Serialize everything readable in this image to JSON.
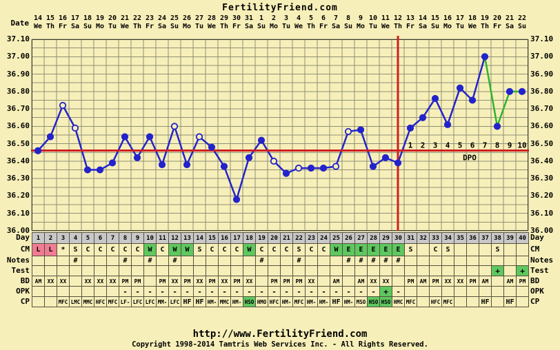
{
  "title": "FertilityFriend.com",
  "header": {
    "date_label": "Date",
    "dates": [
      "14",
      "15",
      "16",
      "17",
      "18",
      "19",
      "20",
      "21",
      "22",
      "23",
      "24",
      "25",
      "26",
      "27",
      "28",
      "29",
      "30",
      "31",
      "1",
      "2",
      "3",
      "4",
      "5",
      "6",
      "7",
      "8",
      "9",
      "10",
      "11",
      "12",
      "13",
      "14",
      "15",
      "16",
      "17",
      "18",
      "19",
      "20",
      "21",
      "22"
    ],
    "weekdays": [
      "We",
      "Th",
      "Fr",
      "Sa",
      "Su",
      "Mo",
      "Tu",
      "We",
      "Th",
      "Fr",
      "Sa",
      "Su",
      "Mo",
      "Tu",
      "We",
      "Th",
      "Fr",
      "Sa",
      "Su",
      "Mo",
      "Tu",
      "We",
      "Th",
      "Fr",
      "Sa",
      "Su",
      "Mo",
      "Tu",
      "We",
      "Th",
      "Fr",
      "Sa",
      "Su",
      "Mo",
      "Tu",
      "We",
      "Th",
      "Fr",
      "Sa",
      "Su"
    ],
    "cycle_days": [
      "1",
      "2",
      "3",
      "4",
      "5",
      "6",
      "7",
      "8",
      "9",
      "10",
      "11",
      "12",
      "13",
      "14",
      "15",
      "16",
      "17",
      "18",
      "19",
      "20",
      "21",
      "22",
      "23",
      "24",
      "25",
      "26",
      "27",
      "28",
      "29",
      "30",
      "31",
      "32",
      "33",
      "34",
      "35",
      "36",
      "37",
      "38",
      "39",
      "40"
    ]
  },
  "chart_data": {
    "type": "line",
    "title": "FertilityFriend.com",
    "ylabel": "Temperature (C)",
    "ylim": [
      36.0,
      37.1
    ],
    "y_ticks": [
      "37.10",
      "37.00",
      "36.90",
      "36.80",
      "36.70",
      "36.60",
      "36.50",
      "36.40",
      "36.30",
      "36.20",
      "36.10",
      "36.00"
    ],
    "minor_grid_step": 0.05,
    "x_days": [
      1,
      2,
      3,
      4,
      5,
      6,
      7,
      8,
      9,
      10,
      11,
      12,
      13,
      14,
      15,
      16,
      17,
      18,
      19,
      20,
      21,
      22,
      23,
      24,
      25,
      26,
      27,
      28,
      29,
      30,
      31,
      32,
      33,
      34,
      35,
      36,
      37,
      38,
      39,
      40
    ],
    "temps": [
      36.46,
      36.54,
      36.72,
      36.59,
      36.35,
      36.35,
      36.39,
      36.54,
      36.42,
      36.54,
      36.38,
      36.6,
      36.38,
      36.54,
      36.48,
      36.37,
      36.18,
      36.42,
      36.52,
      36.4,
      36.33,
      36.36,
      36.36,
      36.36,
      36.37,
      36.57,
      36.58,
      36.37,
      36.42,
      36.39,
      36.59,
      36.65,
      36.76,
      36.61,
      36.82,
      36.75,
      37.0,
      36.6,
      36.8,
      36.8
    ],
    "open_circle_days": [
      3,
      4,
      12,
      14,
      20,
      22,
      25,
      26
    ],
    "green_segment_start_days": [
      37,
      38,
      39
    ],
    "coverline_temp": 36.46,
    "ovulation_day": 30,
    "dpo_ticks": [
      "1",
      "2",
      "3",
      "4",
      "5",
      "6",
      "7",
      "8",
      "9",
      "10"
    ],
    "dpo_label": "DPO"
  },
  "table": {
    "row_labels": {
      "day": "Day",
      "cm": "CM",
      "notes": "Notes",
      "test": "Test",
      "bd": "BD",
      "opk": "OPK",
      "cp": "CP"
    },
    "day": {
      "values": [
        "1",
        "2",
        "3",
        "4",
        "5",
        "6",
        "7",
        "8",
        "9",
        "10",
        "11",
        "12",
        "13",
        "14",
        "15",
        "16",
        "17",
        "18",
        "19",
        "20",
        "21",
        "22",
        "23",
        "24",
        "25",
        "26",
        "27",
        "28",
        "29",
        "30",
        "31",
        "32",
        "33",
        "34",
        "35",
        "36",
        "37",
        "38",
        "39",
        "40"
      ]
    },
    "cm": {
      "values": [
        "L",
        "L",
        "*",
        "S",
        "C",
        "C",
        "C",
        "C",
        "C",
        "W",
        "C",
        "W",
        "W",
        "S",
        "C",
        "C",
        "C",
        "W",
        "C",
        "C",
        "C",
        "S",
        "C",
        "C",
        "W",
        "E",
        "E",
        "E",
        "E",
        "E",
        "S",
        "",
        "C",
        "S",
        "",
        "",
        "",
        "S",
        "",
        ""
      ],
      "highlight": {
        "0": "pink",
        "1": "pink",
        "9": "green",
        "11": "green",
        "12": "green",
        "17": "green",
        "24": "green",
        "25": "green",
        "26": "green",
        "27": "green",
        "28": "green",
        "29": "green"
      }
    },
    "notes": {
      "values": [
        "",
        "",
        "",
        "#",
        "",
        "",
        "",
        "#",
        "",
        "#",
        "",
        "#",
        "",
        "",
        "",
        "",
        "",
        "",
        "#",
        "",
        "",
        "#",
        "",
        "",
        "",
        "#",
        "#",
        "#",
        "#",
        "#",
        "",
        "",
        "",
        "",
        "",
        "",
        "",
        "",
        "",
        ""
      ]
    },
    "test": {
      "values": [
        "",
        "",
        "",
        "",
        "",
        "",
        "",
        "",
        "",
        "",
        "",
        "",
        "",
        "",
        "",
        "",
        "",
        "",
        "",
        "",
        "",
        "",
        "",
        "",
        "",
        "",
        "",
        "",
        "",
        "",
        "",
        "",
        "",
        "",
        "",
        "",
        "",
        "+",
        "",
        "+"
      ],
      "highlight": {
        "37": "green",
        "39": "green"
      }
    },
    "bd": {
      "values": [
        "AM",
        "XX",
        "XX",
        "",
        "XX",
        "XX",
        "XX",
        "PM",
        "PM",
        "",
        "PM",
        "XX",
        "PM",
        "XX",
        "PM",
        "XX",
        "PM",
        "XX",
        "",
        "PM",
        "PM",
        "PM",
        "XX",
        "",
        "AM",
        "",
        "AM",
        "XX",
        "XX",
        "",
        "PM",
        "AM",
        "PM",
        "XX",
        "XX",
        "PM",
        "AM",
        "",
        "AM",
        "PM"
      ]
    },
    "opk": {
      "values": [
        "",
        "",
        "",
        "",
        "",
        "",
        "",
        "-",
        "-",
        "-",
        "-",
        "-",
        "-",
        "-",
        "-",
        "-",
        "-",
        "-",
        "-",
        "-",
        "-",
        "-",
        "-",
        "-",
        "-",
        "-",
        "-",
        "-",
        "+",
        "-",
        "",
        "",
        "",
        "",
        "",
        "",
        "",
        "",
        "",
        ""
      ],
      "highlight": {
        "28": "green"
      }
    },
    "cp": {
      "values": [
        "",
        "",
        "MFC",
        "LMC",
        "MMC",
        "HFC",
        "MFC",
        "LF-",
        "LFC",
        "LFC",
        "MM-",
        "LFC",
        "HF",
        "HF",
        "HM-",
        "MMC",
        "HM-",
        "HSO",
        "HMO",
        "HFC",
        "HM-",
        "MFC",
        "HM-",
        "HM-",
        "HF",
        "HM-",
        "MSO",
        "HSO",
        "HSO",
        "HMC",
        "MFC",
        "",
        "HFC",
        "MFC",
        "",
        "",
        "HF",
        "",
        "HF",
        ""
      ],
      "highlight": {
        "17": "green",
        "27": "green",
        "28": "green"
      },
      "emphasis": [
        12,
        13,
        24,
        36,
        38
      ]
    }
  },
  "footer": {
    "url": "http://www.FertilityFriend.com",
    "copyright": "Copyright 1998-2014 Tamtris Web Services Inc. - All Rights Reserved."
  },
  "colors": {
    "background": "#F7EFB9",
    "grid": "#8F8F78",
    "chart_border": "#3A3A30",
    "line_blue": "#2323CC",
    "line_green": "#2DB42D",
    "red": "#CC2020",
    "day_row_gray": "#C8C8C8",
    "pink": "#F07C94",
    "cell_green": "#5FC75F"
  }
}
